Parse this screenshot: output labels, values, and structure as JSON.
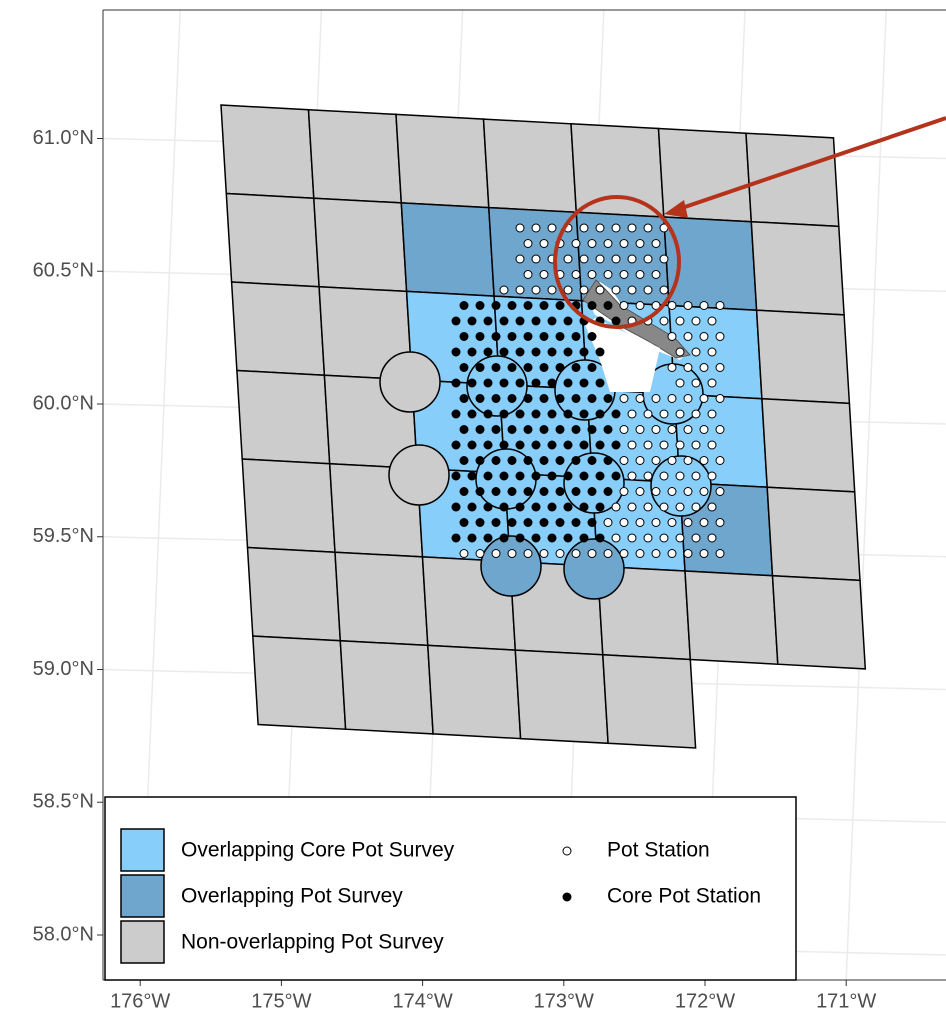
{
  "map": {
    "yticks": [
      {
        "value": 61.0,
        "label": "61.0°N"
      },
      {
        "value": 60.5,
        "label": "60.5°N"
      },
      {
        "value": 60.0,
        "label": "60.0°N"
      },
      {
        "value": 59.5,
        "label": "59.5°N"
      },
      {
        "value": 59.0,
        "label": "59.0°N"
      },
      {
        "value": 58.5,
        "label": "58.5°N"
      },
      {
        "value": 58.0,
        "label": "58.0°N"
      }
    ],
    "xticks": [
      {
        "value": -176,
        "label": "176°W"
      },
      {
        "value": -175,
        "label": "175°W"
      },
      {
        "value": -174,
        "label": "174°W"
      },
      {
        "value": -173,
        "label": "173°W"
      },
      {
        "value": -172,
        "label": "172°W"
      },
      {
        "value": -171,
        "label": "171°W"
      }
    ],
    "legend": {
      "areas": [
        {
          "label": "Overlapping Core Pot Survey",
          "color": "#87cefa"
        },
        {
          "label": "Overlapping Pot Survey",
          "color": "#6ea6cd"
        },
        {
          "label": "Non-overlapping Pot Survey",
          "color": "#cccccc"
        }
      ],
      "points": [
        {
          "label": "Pot Station"
        },
        {
          "label": "Core Pot Station"
        }
      ]
    }
  }
}
